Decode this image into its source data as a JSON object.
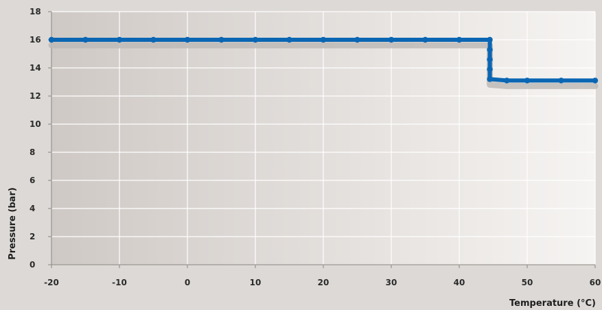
{
  "chart_data": {
    "type": "line",
    "title": "",
    "xlabel": "Temperature (°C)",
    "ylabel": "Pressure (bar)",
    "xlim": [
      -20,
      60
    ],
    "ylim": [
      0,
      18
    ],
    "x_ticks": [
      -20,
      -10,
      0,
      10,
      20,
      30,
      40,
      50,
      60
    ],
    "y_ticks": [
      0,
      2,
      4,
      6,
      8,
      10,
      12,
      14,
      16,
      18
    ],
    "grid": true,
    "series": [
      {
        "color": "#0a66b3",
        "shadow_color": "#bdbab7",
        "points": [
          [
            -20,
            16.0
          ],
          [
            -15,
            16.0
          ],
          [
            -10,
            16.0
          ],
          [
            -5,
            16.0
          ],
          [
            0,
            16.0
          ],
          [
            5,
            16.0
          ],
          [
            10,
            16.0
          ],
          [
            15,
            16.0
          ],
          [
            20,
            16.0
          ],
          [
            25,
            16.0
          ],
          [
            30,
            16.0
          ],
          [
            35,
            16.0
          ],
          [
            40,
            16.0
          ],
          [
            44.5,
            16.0
          ],
          [
            44.5,
            15.3
          ],
          [
            44.5,
            14.6
          ],
          [
            44.5,
            13.9
          ],
          [
            44.5,
            13.2
          ],
          [
            47,
            13.1
          ],
          [
            50,
            13.1
          ],
          [
            55,
            13.1
          ],
          [
            60,
            13.1
          ]
        ]
      }
    ],
    "background_gradient": [
      "#cfc9c5",
      "#f6f4f2"
    ]
  }
}
